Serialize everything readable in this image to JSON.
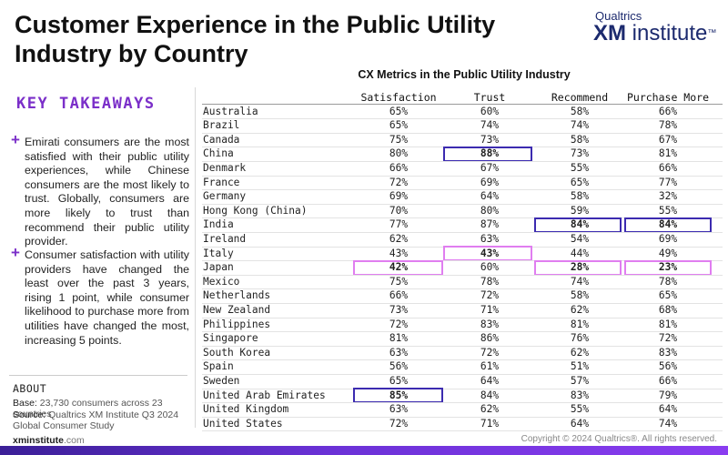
{
  "header": {
    "title": "Customer Experience in the Public Utility Industry by Country",
    "brand_top": "Qualtrics",
    "brand_main_bold": "XM",
    "brand_main_rest": " institute",
    "brand_tm": "™"
  },
  "takeaways": {
    "title": "KEY TAKEAWAYS",
    "items": [
      {
        "bullet": "+",
        "text": "Emirati consumers are the most satisfied with their public utility experiences, while Chinese consumers are the most likely to trust. Globally, consumers are more likely to trust than recommend their public utility provider."
      },
      {
        "bullet": "+",
        "text": "Consumer satisfaction with utility providers have changed the least over the past 3 years, rising 1 point, while consumer likelihood to purchase more from utilities have changed the most, increasing 5 points."
      }
    ]
  },
  "about": {
    "title": "ABOUT",
    "base_label": "Base:",
    "base_value": "23,730 consumers across 23 countries",
    "source_label": "Source:",
    "source_value": "Qualtrics XM Institute Q3 2024 Global Consumer Study"
  },
  "footer": {
    "site_bold": "xminstitute",
    "site_rest": ".com",
    "copyright": "Copyright © 2024 Qualtrics®. All rights reserved."
  },
  "table": {
    "title": "CX Metrics in the Public Utility Industry",
    "columns": [
      "Satisfaction",
      "Trust",
      "Recommend",
      "Purchase More"
    ],
    "rows": [
      {
        "country": "Australia",
        "values": [
          "65%",
          "60%",
          "58%",
          "66%"
        ],
        "highlight": [
          null,
          null,
          null,
          null
        ]
      },
      {
        "country": "Brazil",
        "values": [
          "65%",
          "74%",
          "74%",
          "78%"
        ],
        "highlight": [
          null,
          null,
          null,
          null
        ]
      },
      {
        "country": "Canada",
        "values": [
          "75%",
          "73%",
          "58%",
          "67%"
        ],
        "highlight": [
          null,
          null,
          null,
          null
        ]
      },
      {
        "country": "China",
        "values": [
          "80%",
          "88%",
          "73%",
          "81%"
        ],
        "highlight": [
          null,
          "high",
          null,
          null
        ]
      },
      {
        "country": "Denmark",
        "values": [
          "66%",
          "67%",
          "55%",
          "66%"
        ],
        "highlight": [
          null,
          null,
          null,
          null
        ]
      },
      {
        "country": "France",
        "values": [
          "72%",
          "69%",
          "65%",
          "77%"
        ],
        "highlight": [
          null,
          null,
          null,
          null
        ]
      },
      {
        "country": "Germany",
        "values": [
          "69%",
          "64%",
          "58%",
          "32%"
        ],
        "highlight": [
          null,
          null,
          null,
          null
        ]
      },
      {
        "country": "Hong Kong (China)",
        "values": [
          "70%",
          "80%",
          "59%",
          "55%"
        ],
        "highlight": [
          null,
          null,
          null,
          null
        ]
      },
      {
        "country": "India",
        "values": [
          "77%",
          "87%",
          "84%",
          "84%"
        ],
        "highlight": [
          null,
          null,
          "high",
          "high"
        ]
      },
      {
        "country": "Ireland",
        "values": [
          "62%",
          "63%",
          "54%",
          "69%"
        ],
        "highlight": [
          null,
          null,
          null,
          null
        ]
      },
      {
        "country": "Italy",
        "values": [
          "43%",
          "43%",
          "44%",
          "49%"
        ],
        "highlight": [
          null,
          "low",
          null,
          null
        ]
      },
      {
        "country": "Japan",
        "values": [
          "42%",
          "60%",
          "28%",
          "23%"
        ],
        "highlight": [
          "low",
          null,
          "low",
          "low"
        ]
      },
      {
        "country": "Mexico",
        "values": [
          "75%",
          "78%",
          "74%",
          "78%"
        ],
        "highlight": [
          null,
          null,
          null,
          null
        ]
      },
      {
        "country": "Netherlands",
        "values": [
          "66%",
          "72%",
          "58%",
          "65%"
        ],
        "highlight": [
          null,
          null,
          null,
          null
        ]
      },
      {
        "country": "New Zealand",
        "values": [
          "73%",
          "71%",
          "62%",
          "68%"
        ],
        "highlight": [
          null,
          null,
          null,
          null
        ]
      },
      {
        "country": "Philippines",
        "values": [
          "72%",
          "83%",
          "81%",
          "81%"
        ],
        "highlight": [
          null,
          null,
          null,
          null
        ]
      },
      {
        "country": "Singapore",
        "values": [
          "81%",
          "86%",
          "76%",
          "72%"
        ],
        "highlight": [
          null,
          null,
          null,
          null
        ]
      },
      {
        "country": "South Korea",
        "values": [
          "63%",
          "72%",
          "62%",
          "83%"
        ],
        "highlight": [
          null,
          null,
          null,
          null
        ]
      },
      {
        "country": "Spain",
        "values": [
          "56%",
          "61%",
          "51%",
          "56%"
        ],
        "highlight": [
          null,
          null,
          null,
          null
        ]
      },
      {
        "country": "Sweden",
        "values": [
          "65%",
          "64%",
          "57%",
          "66%"
        ],
        "highlight": [
          null,
          null,
          null,
          null
        ]
      },
      {
        "country": "United Arab Emirates",
        "values": [
          "85%",
          "84%",
          "83%",
          "79%"
        ],
        "highlight": [
          "high",
          null,
          null,
          null
        ]
      },
      {
        "country": "United Kingdom",
        "values": [
          "63%",
          "62%",
          "55%",
          "64%"
        ],
        "highlight": [
          null,
          null,
          null,
          null
        ]
      },
      {
        "country": "United States",
        "values": [
          "72%",
          "71%",
          "64%",
          "74%"
        ],
        "highlight": [
          null,
          null,
          null,
          null
        ]
      }
    ]
  },
  "colors": {
    "accent": "#7b2fc9",
    "highlight_high": "#3c2bb0",
    "highlight_low": "#e07ef0",
    "brand": "#1c2a6e"
  }
}
